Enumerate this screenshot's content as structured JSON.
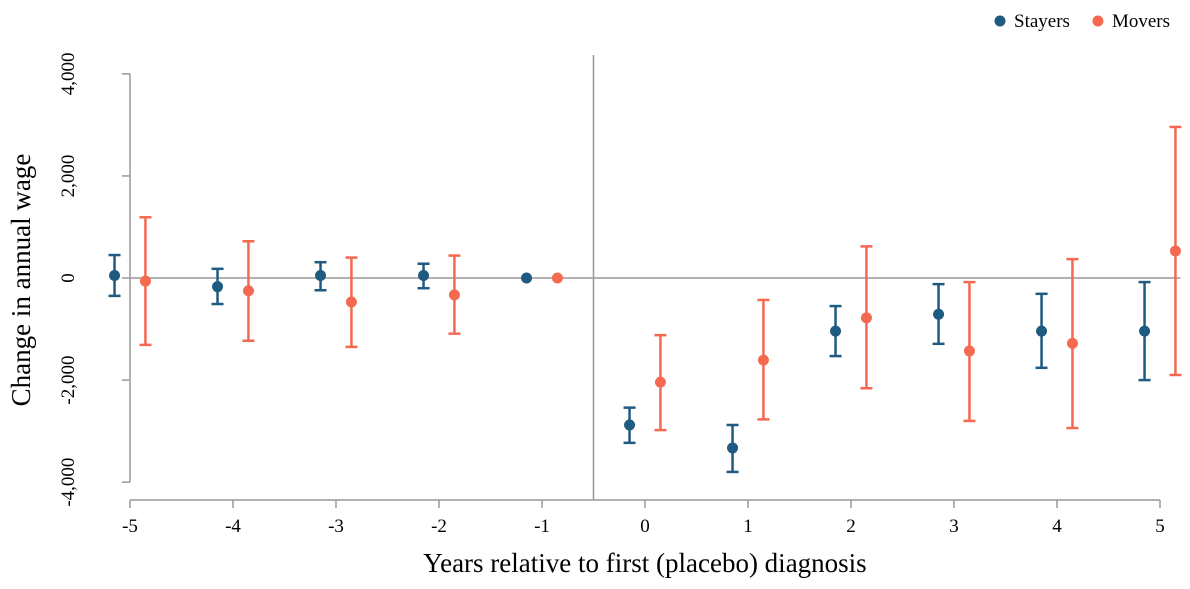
{
  "chart_data": {
    "type": "errorbar",
    "x_label": "Years relative to first (placebo) diagnosis",
    "y_label": "Change in annual wage",
    "x": [
      -5,
      -4,
      -3,
      -2,
      -1,
      0,
      1,
      2,
      3,
      4,
      5
    ],
    "series": [
      {
        "name": "Stayers",
        "color": "#1f5a80",
        "values": [
          50,
          -170,
          50,
          50,
          0,
          -2880,
          -3330,
          -1040,
          -710,
          -1040,
          -1040
        ],
        "lower": [
          -350,
          -510,
          -240,
          -200,
          0,
          -3230,
          -3800,
          -1530,
          -1290,
          -1760,
          -2000
        ],
        "upper": [
          450,
          180,
          310,
          280,
          0,
          -2540,
          -2880,
          -550,
          -120,
          -310,
          -80
        ]
      },
      {
        "name": "Movers",
        "color": "#f4694f",
        "values": [
          -60,
          -250,
          -470,
          -330,
          0,
          -2040,
          -1610,
          -780,
          -1430,
          -1280,
          530
        ],
        "lower": [
          -1310,
          -1230,
          -1350,
          -1090,
          0,
          -2980,
          -2770,
          -2160,
          -2800,
          -2940,
          -1900
        ],
        "upper": [
          1190,
          720,
          400,
          440,
          0,
          -1120,
          -430,
          620,
          -80,
          370,
          2960
        ]
      }
    ],
    "xlim": [
      -5.16,
      5.2
    ],
    "ylim": [
      -4350,
      4370
    ],
    "xticks": [
      -5,
      -4,
      -3,
      -2,
      -1,
      0,
      1,
      2,
      3,
      4,
      5
    ],
    "yticks": [
      {
        "value": -4000,
        "label": "-4,000"
      },
      {
        "value": -2000,
        "label": "-2,000"
      },
      0,
      {
        "value": 2000,
        "label": "2,000"
      },
      {
        "value": 4000,
        "label": "4,000"
      }
    ],
    "reference_lines": {
      "x": -0.5,
      "y": 0
    },
    "legend": "top-right"
  }
}
